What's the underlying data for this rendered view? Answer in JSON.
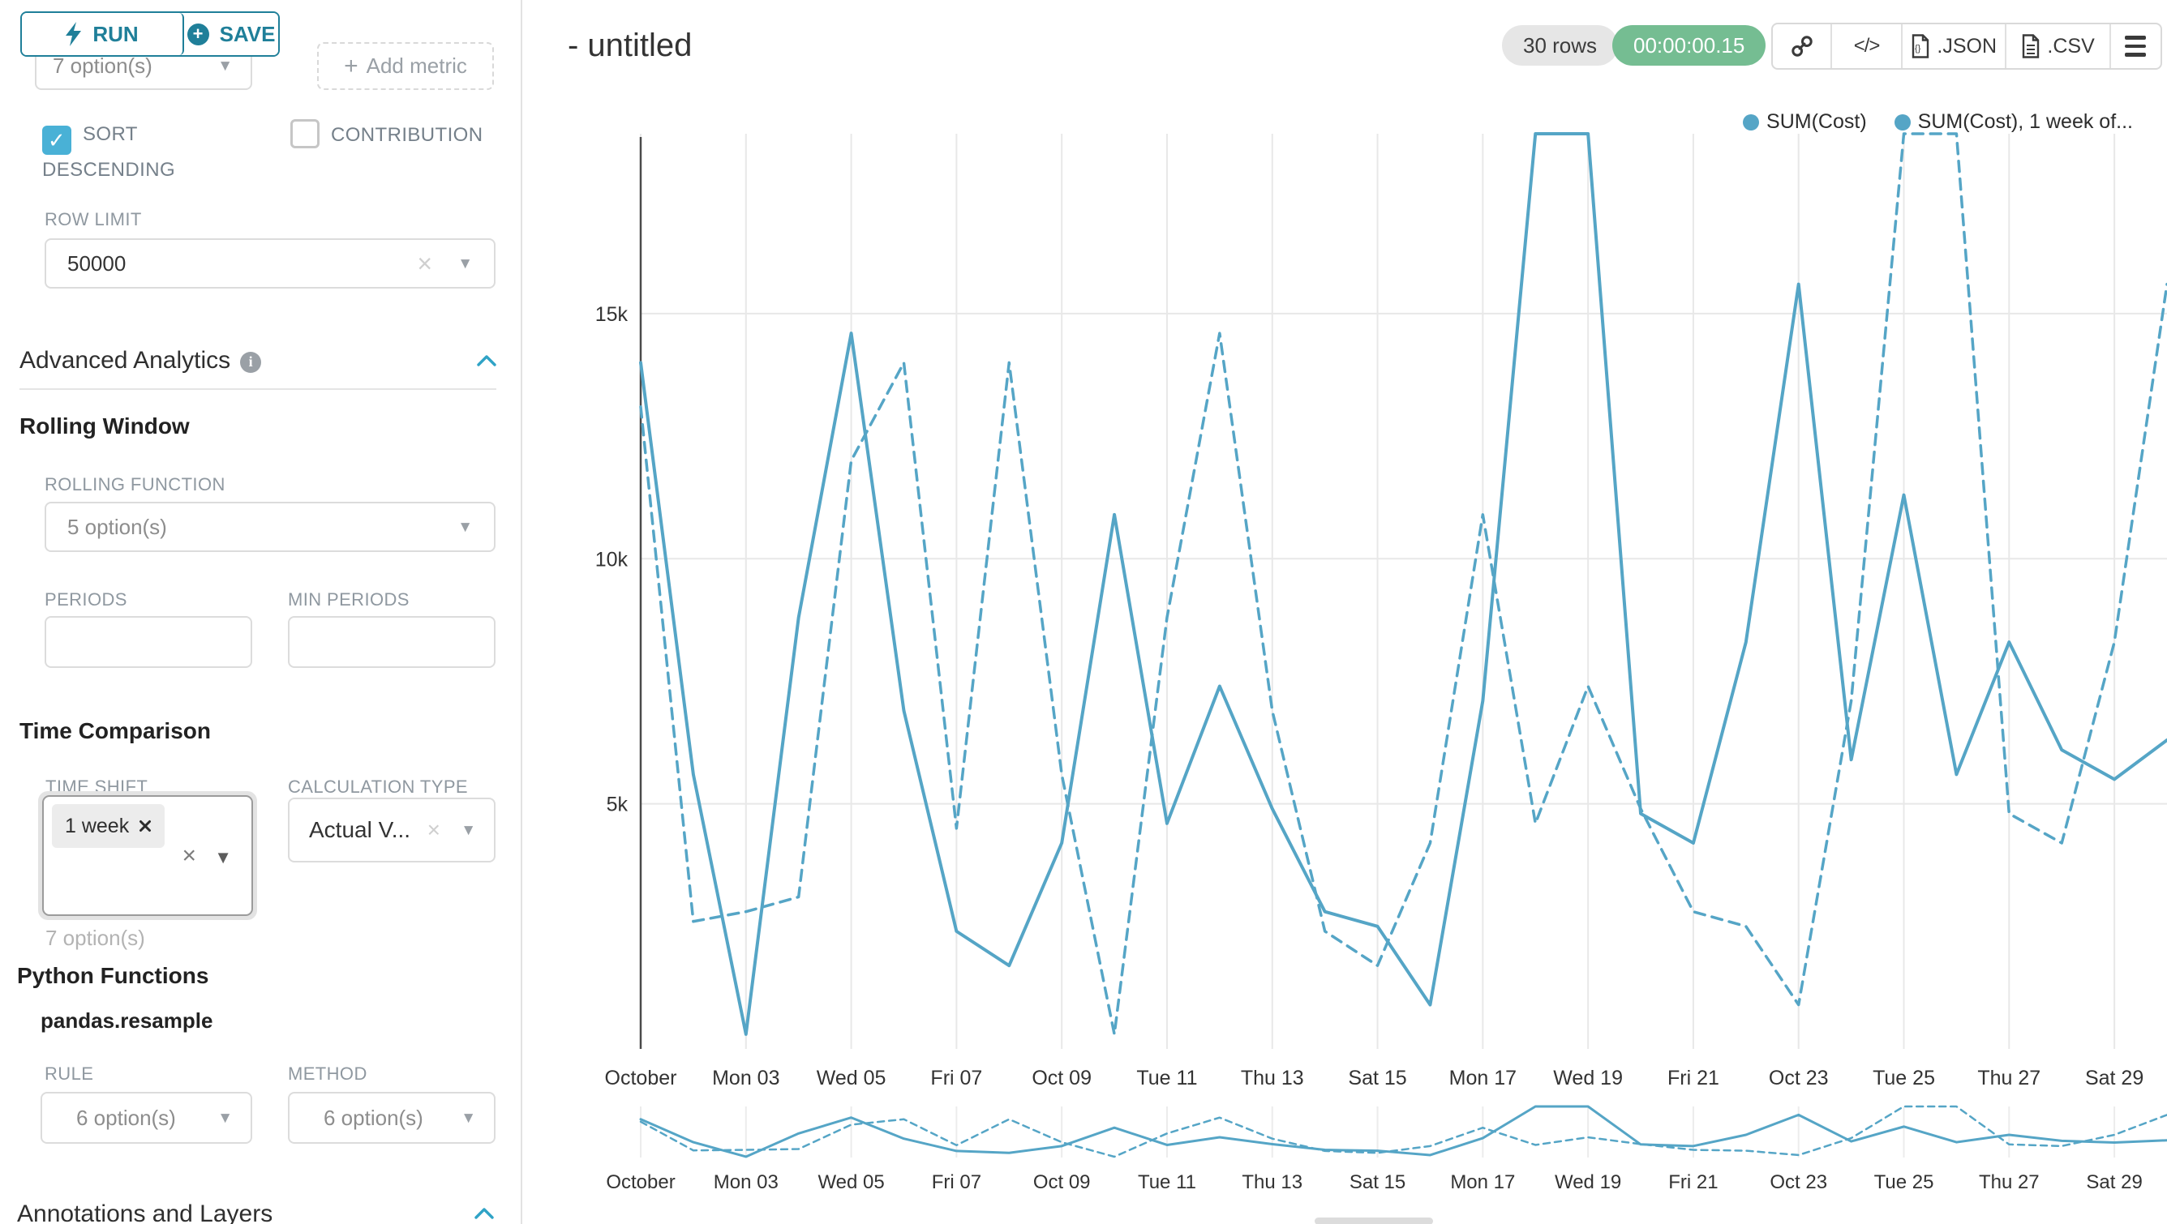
{
  "panel": {
    "run_label": "RUN",
    "save_label": "SAVE",
    "groupby_value": "7 option(s)",
    "add_metric_label": "Add metric",
    "sort_descending_label": "SORT DESCENDING",
    "contribution_label": "CONTRIBUTION",
    "row_limit_label": "ROW LIMIT",
    "row_limit_value": "50000",
    "advanced_analytics_title": "Advanced Analytics",
    "rolling_window_title": "Rolling Window",
    "rolling_function_label": "ROLLING FUNCTION",
    "rolling_function_value": "5 option(s)",
    "periods_label": "PERIODS",
    "min_periods_label": "MIN PERIODS",
    "time_comparison_title": "Time Comparison",
    "time_shift_label": "TIME SHIFT",
    "time_shift_tag": "1 week",
    "time_shift_hint": "7 option(s)",
    "calculation_type_label": "CALCULATION TYPE",
    "calculation_type_value": "Actual V...",
    "python_functions_title": "Python Functions",
    "pandas_resample_label": "pandas.resample",
    "rule_label": "RULE",
    "rule_value": "6 option(s)",
    "method_label": "METHOD",
    "method_value": "6 option(s)",
    "annotations_title": "Annotations and Layers"
  },
  "header": {
    "title": "- untitled",
    "rows_badge": "30 rows",
    "timer_badge": "00:00:00.15",
    "json_label": ".JSON",
    "csv_label": ".CSV"
  },
  "colors": {
    "accent_teal": "#1f7f99",
    "checkbox_teal": "#49b1d6",
    "line_teal": "#55a5c6",
    "timer_green": "#75bd92",
    "grid": "#e8e8e8",
    "axis": "#4a4a4a"
  },
  "chart_data": {
    "type": "line",
    "title": "- untitled",
    "x_tick_labels": [
      "October",
      "Mon 03",
      "Wed 05",
      "Fri 07",
      "Oct 09",
      "Tue 11",
      "Thu 13",
      "Sat 15",
      "Mon 17",
      "Wed 19",
      "Fri 21",
      "Oct 23",
      "Tue 25",
      "Thu 27",
      "Sat 29"
    ],
    "x_tick_indices": [
      0,
      2,
      4,
      6,
      8,
      10,
      12,
      14,
      16,
      18,
      20,
      22,
      24,
      26,
      28
    ],
    "n_points": 30,
    "ylim": [
      0,
      18670
    ],
    "y_ticks": [
      {
        "value": 5000,
        "label": "5k"
      },
      {
        "value": 10000,
        "label": "10k"
      },
      {
        "value": 15000,
        "label": "15k"
      }
    ],
    "grid": true,
    "legend_position": "top-right",
    "series": [
      {
        "name": "SUM(Cost)",
        "line_style": "solid",
        "color": "#55a5c6",
        "values": [
          14000,
          5600,
          300,
          8800,
          14600,
          6900,
          2400,
          1700,
          4200,
          10900,
          4600,
          7400,
          4900,
          2800,
          2500,
          900,
          7100,
          18670,
          18670,
          4800,
          4200,
          8300,
          15600,
          5900,
          11300,
          5600,
          8300,
          6100,
          5500,
          6300
        ]
      },
      {
        "name": "SUM(Cost), 1 week of...",
        "line_style": "dashed",
        "color": "#55a5c6",
        "values": [
          13100,
          2600,
          2800,
          3100,
          12000,
          14000,
          4500,
          14000,
          5600,
          300,
          8800,
          14600,
          6900,
          2400,
          1700,
          4200,
          10900,
          4600,
          7400,
          4900,
          2800,
          2500,
          900,
          7100,
          18670,
          18670,
          4800,
          4200,
          8300,
          15600
        ]
      }
    ]
  }
}
